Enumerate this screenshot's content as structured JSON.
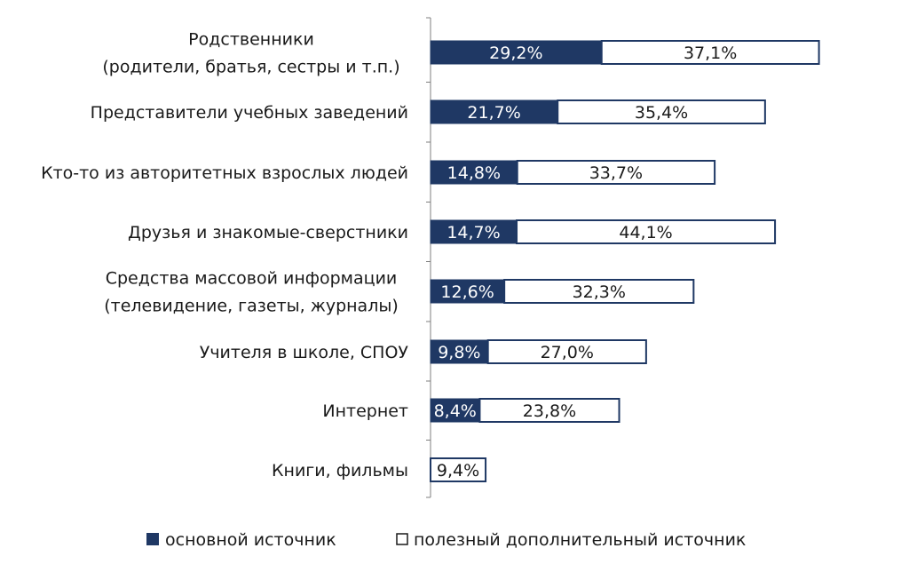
{
  "chart_data": {
    "type": "bar",
    "stacked": true,
    "orientation": "horizontal",
    "categories": [
      [
        "Родственники",
        "(родители, братья, сестры и т.п.)"
      ],
      [
        "Представители учебных заведений"
      ],
      [
        "Кто-то из авторитетных взрослых людей"
      ],
      [
        "Друзья и знакомые-сверстники"
      ],
      [
        "Средства массовой информации",
        "(телевидение, газеты, журналы)"
      ],
      [
        "Учителя в школе, СПОУ"
      ],
      [
        "Интернет"
      ],
      [
        "Книги, фильмы"
      ]
    ],
    "series": [
      {
        "name": "основной источник",
        "color": "#1f3864",
        "values": [
          29.2,
          21.7,
          14.8,
          14.7,
          12.6,
          9.8,
          8.4,
          null
        ],
        "labels": [
          "29,2%",
          "21,7%",
          "14,8%",
          "14,7%",
          "12,6%",
          "9,8%",
          "8,4%",
          ""
        ]
      },
      {
        "name": "полезный дополнительный источник",
        "color": "#ffffff",
        "values": [
          37.1,
          35.4,
          33.7,
          44.1,
          32.3,
          27.0,
          23.8,
          9.4
        ],
        "labels": [
          "37,1%",
          "35,4%",
          "33,7%",
          "44,1%",
          "32,3%",
          "27,0%",
          "23,8%",
          "9,4%"
        ]
      }
    ],
    "legend_position": "bottom",
    "grid": false,
    "xlim": [
      0,
      70
    ]
  }
}
